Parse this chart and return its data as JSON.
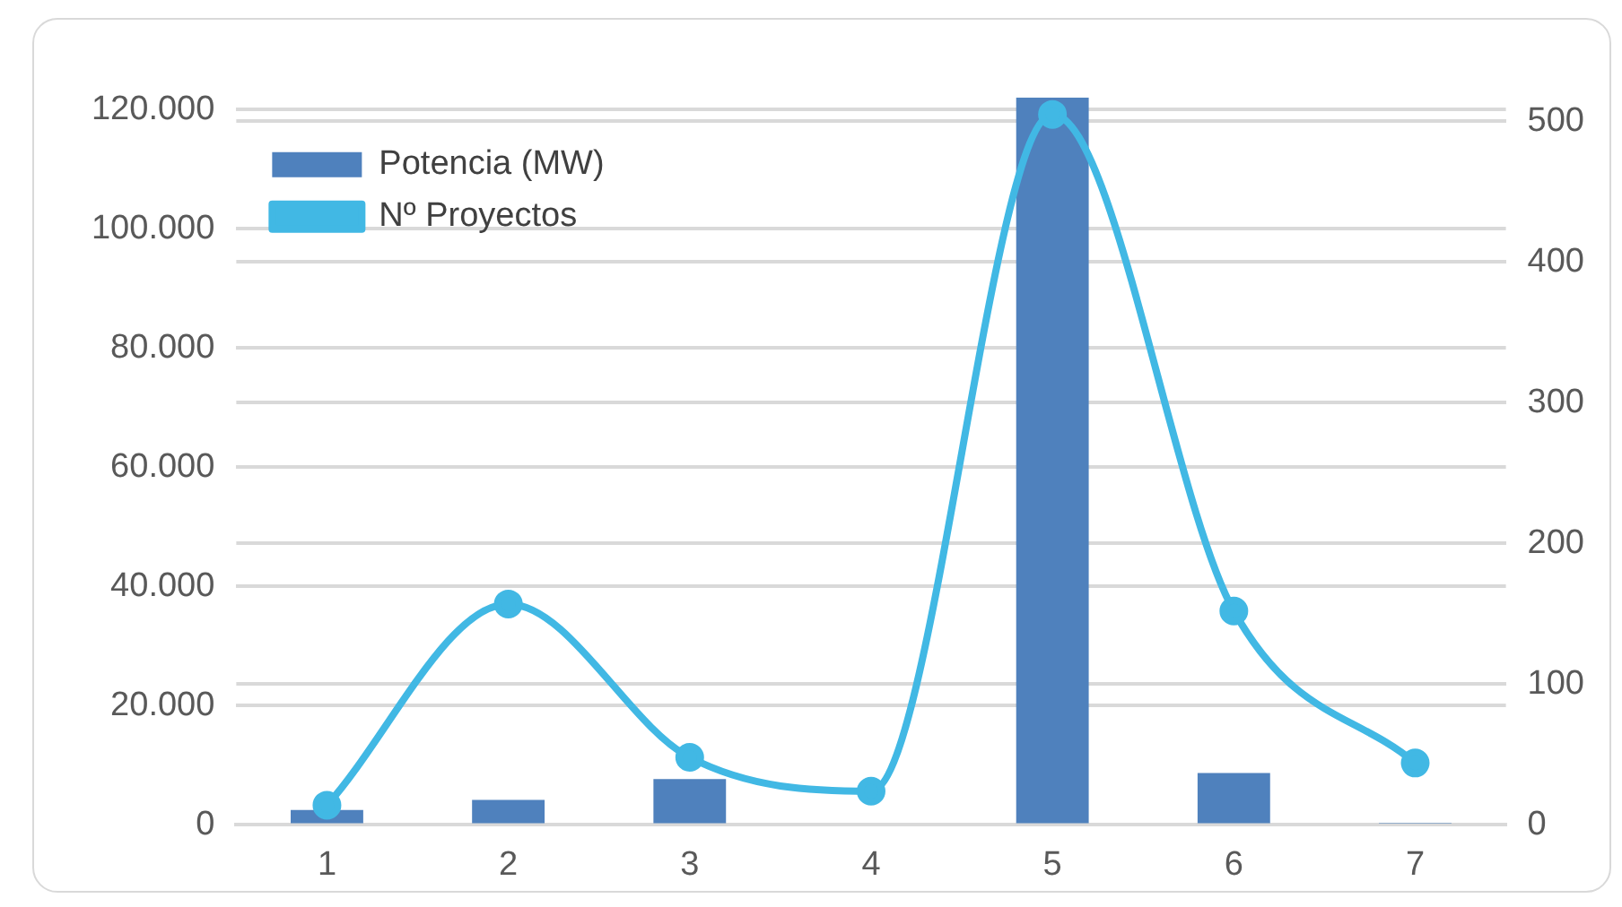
{
  "chart_data": {
    "type": "bar",
    "categories": [
      "1",
      "2",
      "3",
      "4",
      "5",
      "6",
      "7"
    ],
    "series": [
      {
        "name": "Potencia (MW)",
        "color": "#4f81bd",
        "values": [
          2500,
          4200,
          7700,
          null,
          122000,
          8700,
          200
        ]
      },
      {
        "name": "Nº Proyectos",
        "type": "line",
        "axis": "y2",
        "color": "#41b8e4",
        "values": [
          14,
          157,
          48,
          24,
          505,
          152,
          44
        ]
      }
    ],
    "ylim": [
      0,
      122000
    ],
    "yticks": [
      0,
      {
        "value": 20000,
        "label": "20.000"
      },
      {
        "value": 40000,
        "label": "40.000"
      },
      {
        "value": 60000,
        "label": "60.000"
      },
      {
        "value": 80000,
        "label": "80.000"
      },
      {
        "value": 100000,
        "label": "100.000"
      },
      {
        "value": 120000,
        "label": "120.000"
      }
    ],
    "y2lim": [
      0,
      517
    ],
    "y2ticks": [
      0,
      100,
      200,
      300,
      400,
      500
    ],
    "grid": true,
    "legend": "top left",
    "marker": "circle",
    "line_style": "solid"
  }
}
